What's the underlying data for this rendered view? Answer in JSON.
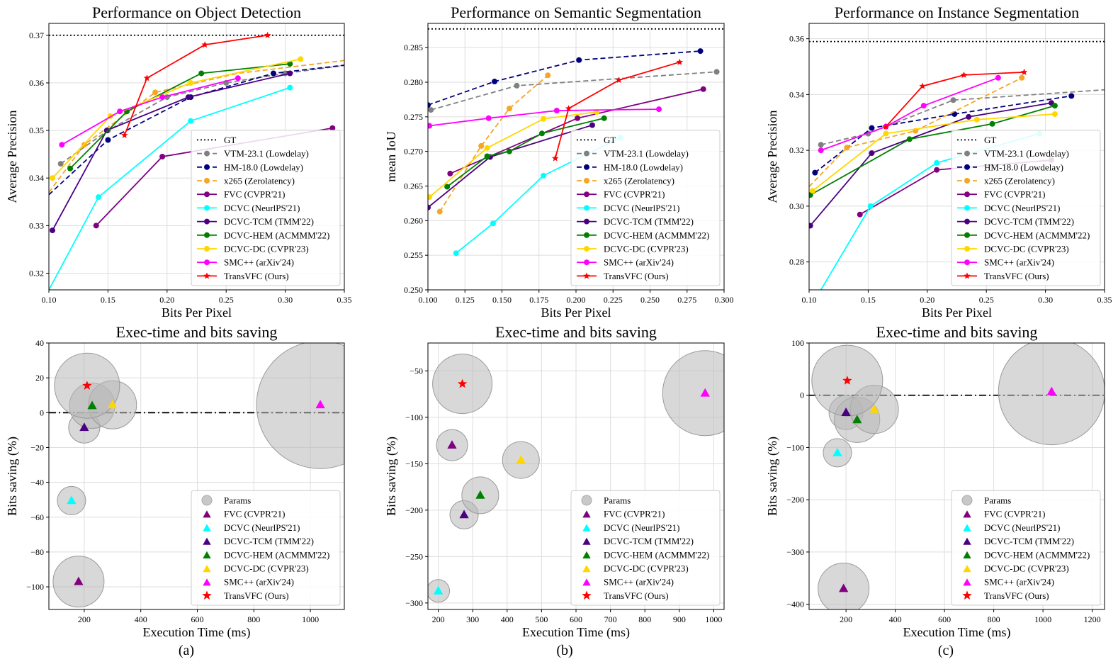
{
  "captions": [
    "(a)",
    "(b)",
    "(c)"
  ],
  "styles": {
    "GT": {
      "color": "#000000",
      "dash": "dotted",
      "marker": "none"
    },
    "VTM-23.1 (Lowdelay)": {
      "color": "#808080",
      "dash": "dashed",
      "marker": "circle"
    },
    "HM-18.0 (Lowdelay)": {
      "color": "#00007f",
      "dash": "dashed",
      "marker": "circle"
    },
    "x265 (Zerolatency)": {
      "color": "#f5a623",
      "dash": "dashed",
      "marker": "circle"
    },
    "FVC (CVPR'21)": {
      "color": "#800080",
      "dash": "solid",
      "marker": "circle"
    },
    "DCVC (NeurlPS'21)": {
      "color": "#00ffff",
      "dash": "solid",
      "marker": "circle"
    },
    "DCVC-TCM (TMM'22)": {
      "color": "#4b0082",
      "dash": "solid",
      "marker": "circle"
    },
    "DCVC-HEM (ACMMM'22)": {
      "color": "#008000",
      "dash": "solid",
      "marker": "circle"
    },
    "DCVC-DC (CVPR'23)": {
      "color": "#ffd700",
      "dash": "solid",
      "marker": "circle"
    },
    "SMC++ (arXiv'24)": {
      "color": "#ff00ff",
      "dash": "solid",
      "marker": "circle"
    },
    "TransVFC (Ours)": {
      "color": "#ff0000",
      "dash": "solid",
      "marker": "star"
    },
    "Params": {
      "color": "#c0c0c0"
    }
  },
  "chart_data": [
    {
      "type": "line",
      "title": "Performance on Object Detection",
      "xlabel": "Bits Per Pixel",
      "ylabel": "Average Precision",
      "xlim": [
        0.1,
        0.35
      ],
      "ylim": [
        0.3165,
        0.3725
      ],
      "xticks": [
        0.1,
        0.15,
        0.2,
        0.25,
        0.3,
        0.35
      ],
      "xtick_labels": [
        "0.10",
        "0.15",
        "0.20",
        "0.25",
        "0.30",
        "0.35"
      ],
      "yticks": [
        0.32,
        0.33,
        0.34,
        0.35,
        0.36,
        0.37
      ],
      "ytick_labels": [
        "0.32",
        "0.33",
        "0.34",
        "0.35",
        "0.36",
        "0.37"
      ],
      "gt": 0.37,
      "legend": "lower-right",
      "series": [
        {
          "name": "VTM-23.1 (Lowdelay)",
          "x": [
            0.11,
            0.15,
            0.2,
            0.25,
            0.3,
            0.36
          ],
          "y": [
            0.343,
            0.35,
            0.357,
            0.36,
            0.362,
            0.364
          ],
          "markers": [
            0,
            1,
            2,
            3,
            4
          ]
        },
        {
          "name": "HM-18.0 (Lowdelay)",
          "x": [
            0.1,
            0.15,
            0.22,
            0.29,
            0.36
          ],
          "y": [
            0.3365,
            0.348,
            0.357,
            0.362,
            0.364
          ],
          "markers": [
            1,
            2,
            3
          ]
        },
        {
          "name": "x265 (Zerolatency)",
          "x": [
            0.1,
            0.13,
            0.19,
            0.26,
            0.36
          ],
          "y": [
            0.337,
            0.347,
            0.358,
            0.362,
            0.365
          ],
          "markers": [
            1,
            2
          ]
        },
        {
          "name": "FVC (CVPR'21)",
          "x": [
            0.14,
            0.196,
            0.34
          ],
          "y": [
            0.33,
            0.3445,
            0.3505
          ]
        },
        {
          "name": "DCVC (NeurlPS'21)",
          "x": [
            0.1,
            0.142,
            0.22,
            0.304
          ],
          "y": [
            0.3165,
            0.336,
            0.352,
            0.359
          ],
          "markers": [
            1,
            2,
            3
          ]
        },
        {
          "name": "DCVC-TCM (TMM'22)",
          "x": [
            0.103,
            0.149,
            0.218,
            0.304
          ],
          "y": [
            0.329,
            0.35,
            0.357,
            0.362
          ]
        },
        {
          "name": "DCVC-HEM (ACMMM'22)",
          "x": [
            0.118,
            0.166,
            0.229,
            0.304
          ],
          "y": [
            0.342,
            0.354,
            0.362,
            0.364
          ]
        },
        {
          "name": "DCVC-DC (CVPR'23)",
          "x": [
            0.103,
            0.152,
            0.22,
            0.313
          ],
          "y": [
            0.34,
            0.353,
            0.36,
            0.365
          ]
        },
        {
          "name": "SMC++ (arXiv'24)",
          "x": [
            0.111,
            0.16,
            0.196,
            0.26
          ],
          "y": [
            0.347,
            0.354,
            0.357,
            0.361
          ]
        },
        {
          "name": "TransVFC (Ours)",
          "x": [
            0.164,
            0.183,
            0.232,
            0.285
          ],
          "y": [
            0.349,
            0.361,
            0.368,
            0.37
          ]
        }
      ]
    },
    {
      "type": "line",
      "title": "Performance on Semantic Segmentation",
      "xlabel": "Bits Per Pixel",
      "ylabel": "mean IoU",
      "xlim": [
        0.1,
        0.3
      ],
      "ylim": [
        0.25,
        0.2885
      ],
      "xticks": [
        0.1,
        0.125,
        0.15,
        0.175,
        0.2,
        0.225,
        0.25,
        0.275,
        0.3
      ],
      "xtick_labels": [
        "0.100",
        "0.125",
        "0.150",
        "0.175",
        "0.200",
        "0.225",
        "0.250",
        "0.275",
        "0.300"
      ],
      "yticks": [
        0.25,
        0.255,
        0.26,
        0.265,
        0.27,
        0.275,
        0.28,
        0.285
      ],
      "ytick_labels": [
        "0.250",
        "0.255",
        "0.260",
        "0.265",
        "0.270",
        "0.275",
        "0.280",
        "0.285"
      ],
      "gt": 0.2877,
      "legend": "lower-right",
      "series": [
        {
          "name": "VTM-23.1 (Lowdelay)",
          "x": [
            0.102,
            0.16,
            0.295
          ],
          "y": [
            0.276,
            0.2795,
            0.2815
          ]
        },
        {
          "name": "HM-18.0 (Lowdelay)",
          "x": [
            0.1,
            0.145,
            0.202,
            0.284
          ],
          "y": [
            0.2767,
            0.2801,
            0.2832,
            0.2845
          ]
        },
        {
          "name": "x265 (Zerolatency)",
          "x": [
            0.108,
            0.136,
            0.155,
            0.181
          ],
          "y": [
            0.2613,
            0.2708,
            0.2762,
            0.281
          ]
        },
        {
          "name": "FVC (CVPR'21)",
          "x": [
            0.115,
            0.201,
            0.286
          ],
          "y": [
            0.2668,
            0.2748,
            0.279
          ]
        },
        {
          "name": "DCVC (NeurlPS'21)",
          "x": [
            0.119,
            0.144,
            0.178,
            0.23
          ],
          "y": [
            0.2553,
            0.2596,
            0.2665,
            0.272
          ]
        },
        {
          "name": "DCVC-TCM (TMM'22)",
          "x": [
            0.1,
            0.142,
            0.211
          ],
          "y": [
            0.2619,
            0.2692,
            0.2738
          ]
        },
        {
          "name": "DCVC-HEM (ACMMM'22)",
          "x": [
            0.113,
            0.14,
            0.155,
            0.177,
            0.219
          ],
          "y": [
            0.2649,
            0.2693,
            0.27,
            0.2726,
            0.2748
          ]
        },
        {
          "name": "DCVC-DC (CVPR'23)",
          "x": [
            0.101,
            0.14,
            0.178,
            0.214
          ],
          "y": [
            0.2634,
            0.2705,
            0.2747,
            0.2757
          ]
        },
        {
          "name": "SMC++ (arXiv'24)",
          "x": [
            0.101,
            0.141,
            0.187,
            0.256
          ],
          "y": [
            0.2737,
            0.2748,
            0.2759,
            0.2761
          ]
        },
        {
          "name": "TransVFC (Ours)",
          "x": [
            0.186,
            0.195,
            0.229,
            0.27
          ],
          "y": [
            0.269,
            0.2762,
            0.2803,
            0.2829
          ]
        }
      ]
    },
    {
      "type": "line",
      "title": "Performance on Instance Segmentation",
      "xlabel": "Bits Per Pixel",
      "ylabel": "Average Precision",
      "xlim": [
        0.1,
        0.35
      ],
      "ylim": [
        0.27,
        0.3655
      ],
      "xticks": [
        0.1,
        0.15,
        0.2,
        0.25,
        0.3,
        0.35
      ],
      "xtick_labels": [
        "0.10",
        "0.15",
        "0.20",
        "0.25",
        "0.30",
        "0.35"
      ],
      "yticks": [
        0.28,
        0.3,
        0.32,
        0.34,
        0.36
      ],
      "ytick_labels": [
        "0.28",
        "0.30",
        "0.32",
        "0.34",
        "0.36"
      ],
      "gt": 0.359,
      "legend": "lower-right",
      "series": [
        {
          "name": "VTM-23.1 (Lowdelay)",
          "x": [
            0.11,
            0.15,
            0.222,
            0.36
          ],
          "y": [
            0.322,
            0.326,
            0.338,
            0.342
          ],
          "markers": [
            0,
            1,
            2
          ]
        },
        {
          "name": "HM-18.0 (Lowdelay)",
          "x": [
            0.105,
            0.153,
            0.223,
            0.322
          ],
          "y": [
            0.312,
            0.328,
            0.333,
            0.3395
          ]
        },
        {
          "name": "x265 (Zerolatency)",
          "x": [
            0.1,
            0.132,
            0.19,
            0.28
          ],
          "y": [
            0.307,
            0.321,
            0.327,
            0.346
          ],
          "markers": [
            1,
            2,
            3
          ]
        },
        {
          "name": "FVC (CVPR'21)",
          "x": [
            0.143,
            0.208,
            0.305
          ],
          "y": [
            0.297,
            0.313,
            0.3165
          ]
        },
        {
          "name": "DCVC (NeurlPS'21)",
          "x": [
            0.11,
            0.152,
            0.208,
            0.295
          ],
          "y": [
            0.27,
            0.3,
            0.3155,
            0.326
          ],
          "markers": [
            1,
            2,
            3
          ]
        },
        {
          "name": "DCVC-TCM (TMM'22)",
          "x": [
            0.101,
            0.153,
            0.235,
            0.305
          ],
          "y": [
            0.293,
            0.319,
            0.332,
            0.337
          ]
        },
        {
          "name": "DCVC-HEM (ACMMM'22)",
          "x": [
            0.101,
            0.185,
            0.255,
            0.308
          ],
          "y": [
            0.304,
            0.324,
            0.3295,
            0.336
          ]
        },
        {
          "name": "DCVC-DC (CVPR'23)",
          "x": [
            0.103,
            0.165,
            0.242,
            0.308
          ],
          "y": [
            0.3055,
            0.326,
            0.331,
            0.333
          ]
        },
        {
          "name": "SMC++ (arXiv'24)",
          "x": [
            0.11,
            0.165,
            0.197,
            0.26
          ],
          "y": [
            0.32,
            0.3285,
            0.336,
            0.346
          ]
        },
        {
          "name": "TransVFC (Ours)",
          "x": [
            0.165,
            0.196,
            0.231,
            0.282
          ],
          "y": [
            0.3285,
            0.343,
            0.347,
            0.348
          ]
        }
      ]
    },
    {
      "type": "scatter",
      "title": "Exec-time and bits saving",
      "xlabel": "Execution Time (ms)",
      "ylabel": "Bits saving (%)",
      "xlim": [
        75,
        1120
      ],
      "ylim": [
        -113,
        40
      ],
      "xticks": [
        200,
        400,
        600,
        800,
        1000
      ],
      "xtick_labels": [
        "200",
        "400",
        "600",
        "800",
        "1000"
      ],
      "yticks": [
        40,
        20,
        0,
        -20,
        -40,
        -60,
        -80,
        -100
      ],
      "ytick_labels": [
        "40",
        "20",
        "0",
        "−20",
        "−40",
        "−60",
        "−80",
        "−100"
      ],
      "zero_line": 0,
      "legend": "lower-right",
      "points": [
        {
          "name": "FVC (CVPR'21)",
          "time": 180,
          "saving": -97,
          "params_r": 36
        },
        {
          "name": "DCVC (NeurlPS'21)",
          "time": 155,
          "saving": -50.5,
          "params_r": 20
        },
        {
          "name": "DCVC-TCM (TMM'22)",
          "time": 200,
          "saving": -8.5,
          "params_r": 22
        },
        {
          "name": "DCVC-HEM (ACMMM'22)",
          "time": 228,
          "saving": 4,
          "params_r": 32
        },
        {
          "name": "DCVC-DC (CVPR'23)",
          "time": 300,
          "saving": 4.5,
          "params_r": 34
        },
        {
          "name": "SMC++ (arXiv'24)",
          "time": 1035,
          "saving": 4.5,
          "params_r": 90
        },
        {
          "name": "TransVFC (Ours)",
          "time": 210,
          "saving": 15.5,
          "params_r": 46
        }
      ]
    },
    {
      "type": "scatter",
      "title": "Exec-time and bits saving",
      "xlabel": "Execution Time (ms)",
      "ylabel": "Bits saving (%)",
      "xlim": [
        170,
        1030
      ],
      "ylim": [
        -307,
        -20
      ],
      "xticks": [
        200,
        300,
        400,
        500,
        600,
        700,
        800,
        900,
        1000
      ],
      "xtick_labels": [
        "200",
        "300",
        "400",
        "500",
        "600",
        "700",
        "800",
        "900",
        "1000"
      ],
      "yticks": [
        -50,
        -100,
        -150,
        -200,
        -250,
        -300
      ],
      "ytick_labels": [
        "−50",
        "−100",
        "−150",
        "−200",
        "−250",
        "−300"
      ],
      "legend": "lower-right",
      "points": [
        {
          "name": "FVC (CVPR'21)",
          "time": 240,
          "saving": -130,
          "params_r": 22
        },
        {
          "name": "DCVC (NeurlPS'21)",
          "time": 200,
          "saving": -287,
          "params_r": 16
        },
        {
          "name": "DCVC-TCM (TMM'22)",
          "time": 275,
          "saving": -205,
          "params_r": 20
        },
        {
          "name": "DCVC-HEM (ACMMM'22)",
          "time": 322,
          "saving": -184,
          "params_r": 26
        },
        {
          "name": "DCVC-DC (CVPR'23)",
          "time": 440,
          "saving": -146,
          "params_r": 26
        },
        {
          "name": "SMC++ (arXiv'24)",
          "time": 975,
          "saving": -74,
          "params_r": 60
        },
        {
          "name": "TransVFC (Ours)",
          "time": 270,
          "saving": -64,
          "params_r": 42
        }
      ]
    },
    {
      "type": "scatter",
      "title": "Exec-time and bits saving",
      "xlabel": "Execution Time (ms)",
      "ylabel": "Bits saving (%)",
      "xlim": [
        50,
        1250
      ],
      "ylim": [
        -410,
        100
      ],
      "xticks": [
        200,
        400,
        600,
        800,
        1000,
        1200
      ],
      "xtick_labels": [
        "200",
        "400",
        "600",
        "800",
        "1000",
        "1200"
      ],
      "yticks": [
        100,
        0,
        -100,
        -200,
        -300,
        -400
      ],
      "ytick_labels": [
        "100",
        "0",
        "−100",
        "−200",
        "−300",
        "−400"
      ],
      "zero_line": 0,
      "legend": "lower-right",
      "points": [
        {
          "name": "FVC (CVPR'21)",
          "time": 190,
          "saving": -370,
          "params_r": 36
        },
        {
          "name": "DCVC (NeurlPS'21)",
          "time": 165,
          "saving": -110,
          "params_r": 20
        },
        {
          "name": "DCVC-TCM (TMM'22)",
          "time": 200,
          "saving": -33,
          "params_r": 24
        },
        {
          "name": "DCVC-HEM (ACMMM'22)",
          "time": 245,
          "saving": -47,
          "params_r": 32
        },
        {
          "name": "DCVC-DC (CVPR'23)",
          "time": 315,
          "saving": -27,
          "params_r": 34
        },
        {
          "name": "SMC++ (arXiv'24)",
          "time": 1035,
          "saving": 7,
          "params_r": 75
        },
        {
          "name": "TransVFC (Ours)",
          "time": 205,
          "saving": 28,
          "params_r": 50
        }
      ]
    }
  ]
}
